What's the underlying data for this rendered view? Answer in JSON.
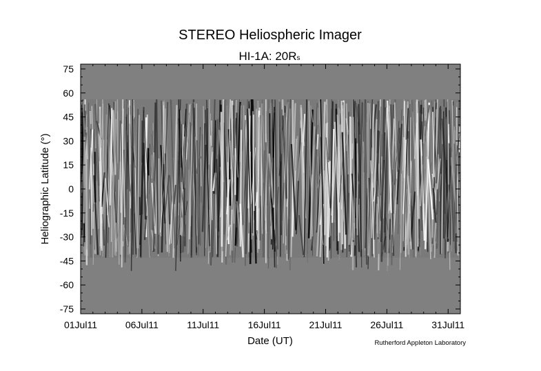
{
  "chart_data": {
    "type": "heatmap",
    "title": "STEREO Heliospheric Imager",
    "subtitle": {
      "main": "HI-1A: 20R",
      "subscript": "s"
    },
    "xlabel": "Date (UT)",
    "ylabel": "Heliographic Latitude (°)",
    "x_tick_labels": [
      "01Jul11",
      "06Jul11",
      "11Jul11",
      "16Jul11",
      "21Jul11",
      "26Jul11",
      "31Jul11"
    ],
    "x_tick_days": [
      1,
      6,
      11,
      16,
      21,
      26,
      31
    ],
    "xlim_days": [
      1,
      32
    ],
    "y_ticks": [
      75,
      60,
      45,
      30,
      15,
      0,
      -15,
      -30,
      -45,
      -60,
      -75
    ],
    "ylim": [
      -78,
      78
    ],
    "data_band_latitude": {
      "north_edge": 56,
      "south_edge": -43
    },
    "fill_value_color": "#808080",
    "colormap": "grayscale running-difference",
    "credit": "Rutherford Appleton Laboratory"
  }
}
